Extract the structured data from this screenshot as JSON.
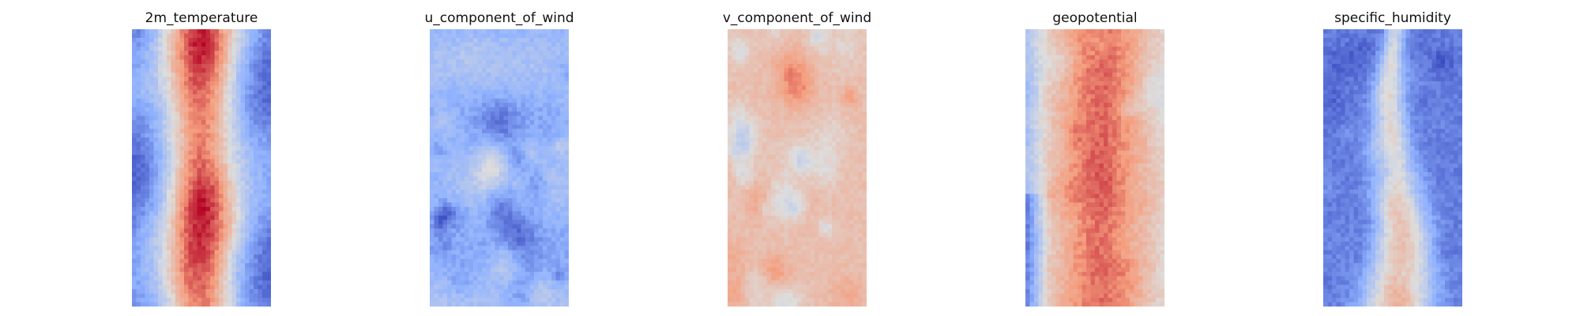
{
  "figure": {
    "panels": [
      {
        "title": "2m_temperature",
        "pattern": "warm-band",
        "seed": 11
      },
      {
        "title": "u_component_of_wind",
        "pattern": "cool-blobs",
        "seed": 23
      },
      {
        "title": "v_component_of_wind",
        "pattern": "warm-blobs",
        "seed": 37
      },
      {
        "title": "geopotential",
        "pattern": "warm-wide",
        "seed": 41
      },
      {
        "title": "specific_humidity",
        "pattern": "cool-branch",
        "seed": 53
      }
    ]
  },
  "chart_data": [
    {
      "type": "heatmap",
      "title": "2m_temperature",
      "colormap": "coolwarm",
      "axes": "off"
    },
    {
      "type": "heatmap",
      "title": "u_component_of_wind",
      "colormap": "coolwarm",
      "axes": "off"
    },
    {
      "type": "heatmap",
      "title": "v_component_of_wind",
      "colormap": "coolwarm",
      "axes": "off"
    },
    {
      "type": "heatmap",
      "title": "geopotential",
      "colormap": "coolwarm",
      "axes": "off"
    },
    {
      "type": "heatmap",
      "title": "specific_humidity",
      "colormap": "coolwarm",
      "axes": "off"
    }
  ]
}
